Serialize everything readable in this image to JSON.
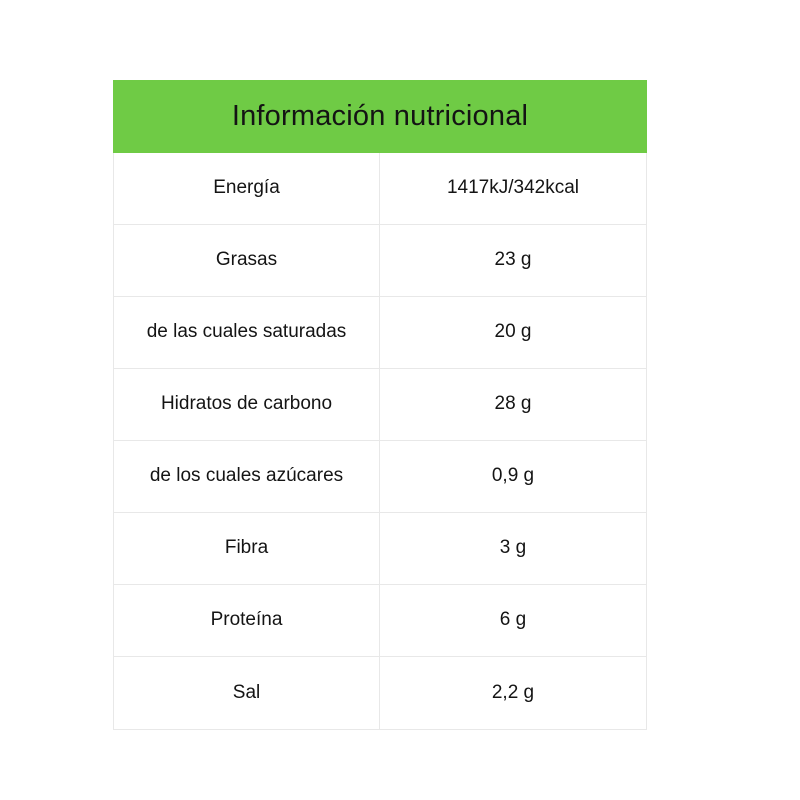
{
  "colors": {
    "accent": "#6FCB45",
    "border": "#E8E8E8",
    "text": "#141414",
    "background": "#FFFFFF"
  },
  "header": {
    "title": "Información nutricional"
  },
  "table": {
    "rows": [
      {
        "label": "Energía",
        "value": "1417kJ/342kcal"
      },
      {
        "label": "Grasas",
        "value": "23 g"
      },
      {
        "label": "de las cuales saturadas",
        "value": "20 g"
      },
      {
        "label": "Hidratos de carbono",
        "value": "28 g"
      },
      {
        "label": "de los cuales azúcares",
        "value": "0,9 g"
      },
      {
        "label": "Fibra",
        "value": "3 g"
      },
      {
        "label": "Proteína",
        "value": "6 g"
      },
      {
        "label": "Sal",
        "value": "2,2 g"
      }
    ]
  }
}
